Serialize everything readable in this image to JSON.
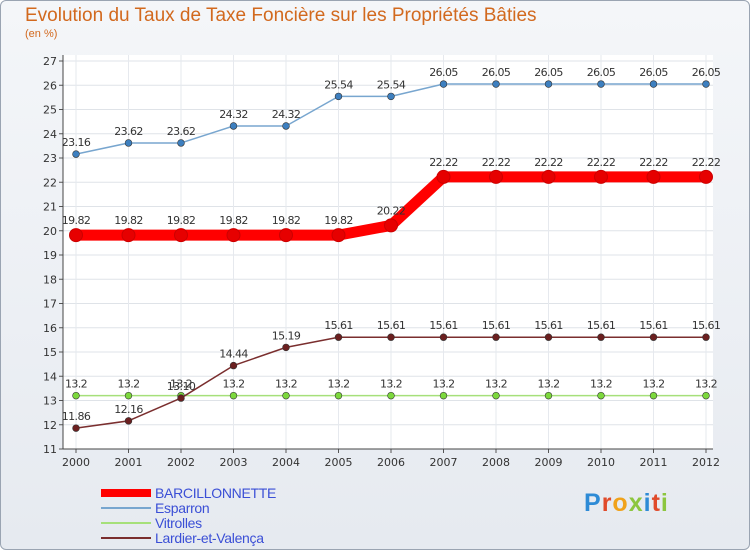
{
  "chart_data": {
    "type": "line",
    "title": "Evolution du Taux de Taxe Foncière sur les Propriétés Bâties",
    "subtitle": "(en %)",
    "xlabel": "",
    "ylabel": "",
    "ylim": [
      11,
      27
    ],
    "yticks": [
      "11",
      "12",
      "13",
      "14",
      "15",
      "16",
      "17",
      "18",
      "19",
      "20",
      "21",
      "22",
      "23",
      "24",
      "25",
      "26",
      "27"
    ],
    "categories": [
      "2000",
      "2001",
      "2002",
      "2003",
      "2004",
      "2005",
      "2006",
      "2007",
      "2008",
      "2009",
      "2010",
      "2011",
      "2012"
    ],
    "grid": true,
    "series": [
      {
        "name": "BARCILLONNETTE",
        "color": "#ff0000",
        "marker_color": "#e60000",
        "values": [
          19.82,
          19.82,
          19.82,
          19.82,
          19.82,
          19.82,
          20.22,
          22.22,
          22.22,
          22.22,
          22.22,
          22.22,
          22.22
        ],
        "labels": [
          "19.82",
          "19.82",
          "19.82",
          "19.82",
          "19.82",
          "19.82",
          "20.22",
          "22.22",
          "22.22",
          "22.22",
          "22.22",
          "22.22",
          "22.22"
        ]
      },
      {
        "name": "Esparron",
        "color": "#78a6cf",
        "marker_color": "#3d7fbf",
        "values": [
          23.16,
          23.62,
          23.62,
          24.32,
          24.32,
          25.54,
          25.54,
          26.05,
          26.05,
          26.05,
          26.05,
          26.05,
          26.05
        ],
        "labels": [
          "23.16",
          "23.62",
          "23.62",
          "24.32",
          "24.32",
          "25.54",
          "25.54",
          "26.05",
          "26.05",
          "26.05",
          "26.05",
          "26.05",
          "26.05"
        ]
      },
      {
        "name": "Vitrolles",
        "color": "#a6e07a",
        "marker_color": "#7cd83c",
        "values": [
          13.2,
          13.2,
          13.2,
          13.2,
          13.2,
          13.2,
          13.2,
          13.2,
          13.2,
          13.2,
          13.2,
          13.2,
          13.2
        ],
        "labels": [
          "13.2",
          "13.2",
          "13.2",
          "13.2",
          "13.2",
          "13.2",
          "13.2",
          "13.2",
          "13.2",
          "13.2",
          "13.2",
          "13.2",
          "13.2"
        ]
      },
      {
        "name": "Lardier-et-Valença",
        "color": "#7a2e2e",
        "marker_color": "#6b1f1f",
        "values": [
          11.86,
          12.16,
          13.1,
          14.44,
          15.19,
          15.61,
          15.61,
          15.61,
          15.61,
          15.61,
          15.61,
          15.61,
          15.61
        ],
        "labels": [
          "11.86",
          "12.16",
          "13.10",
          "14.44",
          "15.19",
          "15.61",
          "15.61",
          "15.61",
          "15.61",
          "15.61",
          "15.61",
          "15.61",
          "15.61"
        ]
      }
    ],
    "legend": [
      "BARCILLONNETTE",
      "Esparron",
      "Vitrolles",
      "Lardier-et-Valença"
    ]
  },
  "branding": {
    "logo_letters": [
      "P",
      "r",
      "o",
      "x",
      "i",
      "t",
      "i"
    ]
  }
}
